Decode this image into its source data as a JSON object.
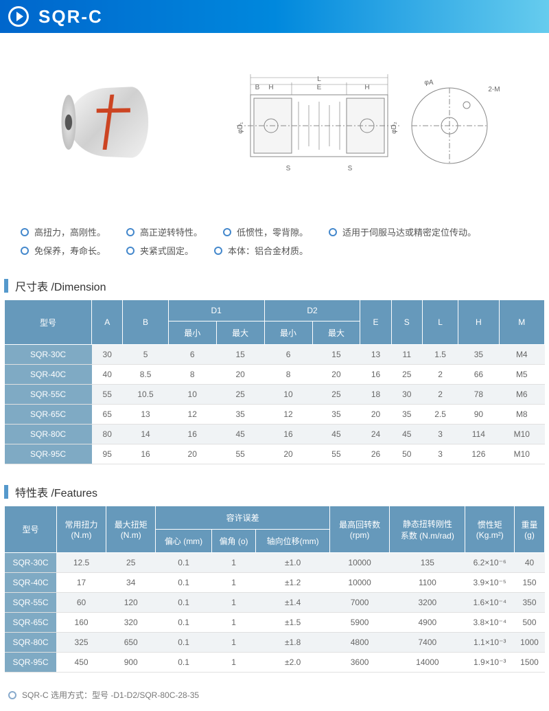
{
  "header": {
    "title": "SQR-C"
  },
  "features": [
    "高扭力，高刚性。",
    "高正逆转特性。",
    "低惯性，零背隙。",
    "适用于伺服马达或精密定位传动。",
    "免保养，寿命长。",
    "夹紧式固定。",
    "本体：铝合金材质。"
  ],
  "dimension": {
    "title": "尺寸表 /Dimension",
    "columns": {
      "model": "型号",
      "A": "A",
      "B": "B",
      "D1": "D1",
      "D2": "D2",
      "min": "最小",
      "max": "最大",
      "E": "E",
      "S": "S",
      "L": "L",
      "H": "H",
      "M": "M"
    },
    "rows": [
      {
        "model": "SQR-30C",
        "A": "30",
        "B": "5",
        "D1min": "6",
        "D1max": "15",
        "D2min": "6",
        "D2max": "15",
        "E": "13",
        "S": "11",
        "L": "1.5",
        "H": "35",
        "M": "M4"
      },
      {
        "model": "SQR-40C",
        "A": "40",
        "B": "8.5",
        "D1min": "8",
        "D1max": "20",
        "D2min": "8",
        "D2max": "20",
        "E": "16",
        "S": "25",
        "L": "2",
        "H": "66",
        "M": "M5"
      },
      {
        "model": "SQR-55C",
        "A": "55",
        "B": "10.5",
        "D1min": "10",
        "D1max": "25",
        "D2min": "10",
        "D2max": "25",
        "E": "18",
        "S": "30",
        "L": "2",
        "H": "78",
        "M": "M6"
      },
      {
        "model": "SQR-65C",
        "A": "65",
        "B": "13",
        "D1min": "12",
        "D1max": "35",
        "D2min": "12",
        "D2max": "35",
        "E": "20",
        "S": "35",
        "L": "2.5",
        "H": "90",
        "M": "M8"
      },
      {
        "model": "SQR-80C",
        "A": "80",
        "B": "14",
        "D1min": "16",
        "D1max": "45",
        "D2min": "16",
        "D2max": "45",
        "E": "24",
        "S": "45",
        "L": "3",
        "H": "114",
        "M": "M10"
      },
      {
        "model": "SQR-95C",
        "A": "95",
        "B": "16",
        "D1min": "20",
        "D1max": "55",
        "D2min": "20",
        "D2max": "55",
        "E": "26",
        "S": "50",
        "L": "3",
        "H": "126",
        "M": "M10"
      }
    ]
  },
  "featuresTable": {
    "title": "特性表 /Features",
    "columns": {
      "model": "型号",
      "torque": "常用扭力\n(N.m)",
      "maxTorque": "最大扭矩\n(N.m)",
      "tolerance": "容许误差",
      "ecc": "偏心 (mm)",
      "ang": "偏角 (o)",
      "axial": "轴向位移(mm)",
      "rpm": "最高回转数\n(rpm)",
      "stiff": "静态扭转刚性\n系数 (N.m/rad)",
      "inertia": "惯性矩\n(Kg.m²)",
      "weight": "重量\n(g)"
    },
    "rows": [
      {
        "model": "SQR-30C",
        "torque": "12.5",
        "maxTorque": "25",
        "ecc": "0.1",
        "ang": "1",
        "axial": "±1.0",
        "rpm": "10000",
        "stiff": "135",
        "inertia": "6.2×10⁻⁶",
        "weight": "40"
      },
      {
        "model": "SQR-40C",
        "torque": "17",
        "maxTorque": "34",
        "ecc": "0.1",
        "ang": "1",
        "axial": "±1.2",
        "rpm": "10000",
        "stiff": "1100",
        "inertia": "3.9×10⁻⁵",
        "weight": "150"
      },
      {
        "model": "SQR-55C",
        "torque": "60",
        "maxTorque": "120",
        "ecc": "0.1",
        "ang": "1",
        "axial": "±1.4",
        "rpm": "7000",
        "stiff": "3200",
        "inertia": "1.6×10⁻⁴",
        "weight": "350"
      },
      {
        "model": "SQR-65C",
        "torque": "160",
        "maxTorque": "320",
        "ecc": "0.1",
        "ang": "1",
        "axial": "±1.5",
        "rpm": "5900",
        "stiff": "4900",
        "inertia": "3.8×10⁻⁴",
        "weight": "500"
      },
      {
        "model": "SQR-80C",
        "torque": "325",
        "maxTorque": "650",
        "ecc": "0.1",
        "ang": "1",
        "axial": "±1.8",
        "rpm": "4800",
        "stiff": "7400",
        "inertia": "1.1×10⁻³",
        "weight": "1000"
      },
      {
        "model": "SQR-95C",
        "torque": "450",
        "maxTorque": "900",
        "ecc": "0.1",
        "ang": "1",
        "axial": "±2.0",
        "rpm": "3600",
        "stiff": "14000",
        "inertia": "1.9×10⁻³",
        "weight": "1500"
      }
    ]
  },
  "footer": "SQR-C 选用方式：型号 -D1-D2/SQR-80C-28-35",
  "diagram": {
    "labels": {
      "L": "L",
      "H": "H",
      "E": "E",
      "B": "B",
      "S": "S",
      "phiA": "φA",
      "phiD1": "φD₁",
      "phiD2": "φD₂",
      "M2": "2-M"
    }
  }
}
